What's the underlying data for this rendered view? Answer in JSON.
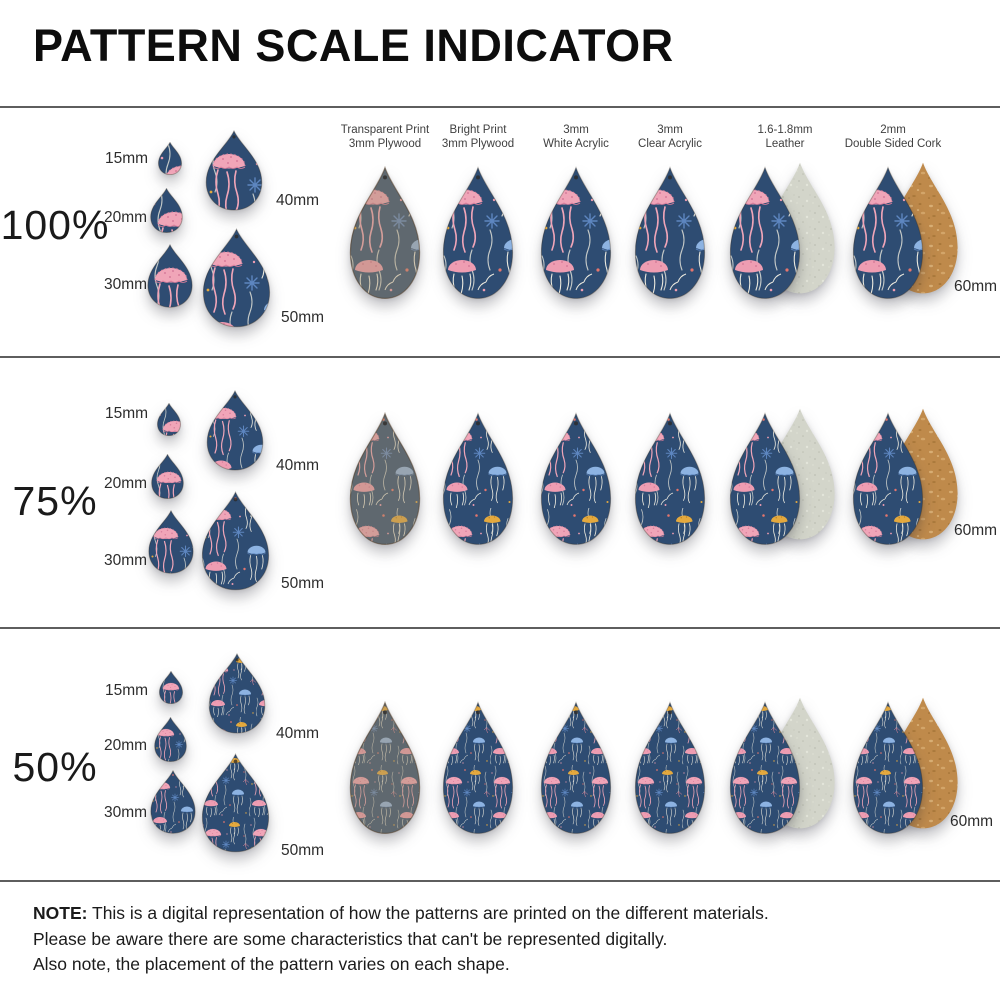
{
  "title": "PATTERN SCALE INDICATOR",
  "material_columns": [
    {
      "line1": "Transparent Print",
      "line2": "3mm Plywood"
    },
    {
      "line1": "Bright Print",
      "line2": "3mm Plywood"
    },
    {
      "line1": "3mm",
      "line2": "White Acrylic"
    },
    {
      "line1": "3mm",
      "line2": "Clear Acrylic"
    },
    {
      "line1": "1.6-1.8mm",
      "line2": "Leather"
    },
    {
      "line1": "2mm",
      "line2": "Double Sided Cork"
    }
  ],
  "scale_rows": [
    {
      "scale_label": "100%",
      "pattern_scale_pct": 100,
      "size_labels": {
        "s15": "15mm",
        "s20": "20mm",
        "s30": "30mm",
        "s40": "40mm",
        "s50": "50mm",
        "s60": "60mm"
      }
    },
    {
      "scale_label": "75%",
      "pattern_scale_pct": 75,
      "size_labels": {
        "s15": "15mm",
        "s20": "20mm",
        "s30": "30mm",
        "s40": "40mm",
        "s50": "50mm",
        "s60": "60mm"
      }
    },
    {
      "scale_label": "50%",
      "pattern_scale_pct": 50,
      "size_labels": {
        "s15": "15mm",
        "s20": "20mm",
        "s30": "30mm",
        "s40": "40mm",
        "s50": "50mm",
        "s60": "60mm"
      }
    }
  ],
  "note": {
    "label": "NOTE:",
    "line1": "This is a digital representation of how the patterns are printed on the different materials.",
    "line2": "Please be aware there are some characteristics that can't be represented digitally.",
    "line3": "Also note, the placement of the pattern varies on each shape."
  },
  "pattern_info": {
    "motif": "jellyfish",
    "colors": {
      "background_navy": "#2e4c72",
      "jelly_pink": "#f0a5b8",
      "jelly_deep_pink": "#d87d9b",
      "jelly_yellow": "#e4a93e",
      "jelly_blue": "#8db3e2",
      "tentacle_white": "#eceadf",
      "accent_coral": "#e5756d",
      "plywood_wood": "#a8916a",
      "leather_suede_gray": "#d3d5ca",
      "cork_tan": "#bf8a4b"
    }
  }
}
